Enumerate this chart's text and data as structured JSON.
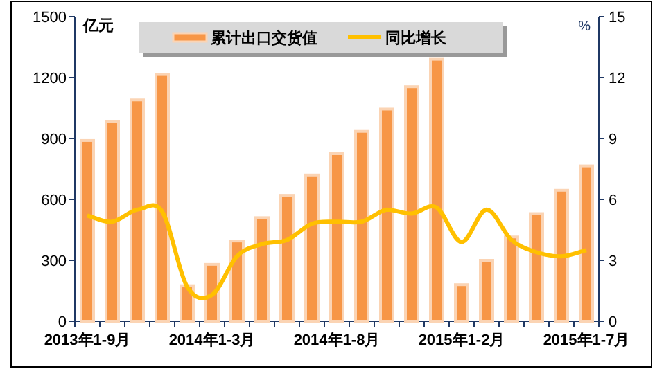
{
  "chart_data": {
    "type": "bar",
    "ylabel": "亿元",
    "y2label": "%",
    "legend": "top",
    "grid": false,
    "categories": [
      "2013年1-9月",
      null,
      null,
      null,
      null,
      "2014年1-3月",
      null,
      null,
      null,
      null,
      "2014年1-8月",
      null,
      null,
      null,
      null,
      "2015年1-2月",
      null,
      null,
      null,
      null,
      "2015年1-7月"
    ],
    "ylim": [
      0,
      1500
    ],
    "yticks": [
      0,
      300,
      600,
      900,
      1200,
      1500
    ],
    "y2lim": [
      0,
      15
    ],
    "y2ticks": [
      0,
      3,
      6,
      9,
      12,
      15
    ],
    "series": [
      {
        "name": "累计出口交货值",
        "color": "#f79646",
        "values": [
          890,
          985,
          1090,
          1215,
          175,
          280,
          395,
          510,
          620,
          720,
          825,
          935,
          1045,
          1155,
          1290,
          180,
          300,
          415,
          530,
          645,
          765
        ]
      },
      {
        "name": "同比增长",
        "type": "line",
        "axis": "y2",
        "color": "#ffc000",
        "values": [
          5.2,
          4.9,
          5.5,
          5.4,
          1.7,
          1.3,
          3.2,
          3.8,
          4.0,
          4.8,
          4.9,
          4.9,
          5.5,
          5.3,
          5.6,
          3.9,
          5.5,
          4.0,
          3.4,
          3.2,
          3.5
        ]
      }
    ]
  }
}
